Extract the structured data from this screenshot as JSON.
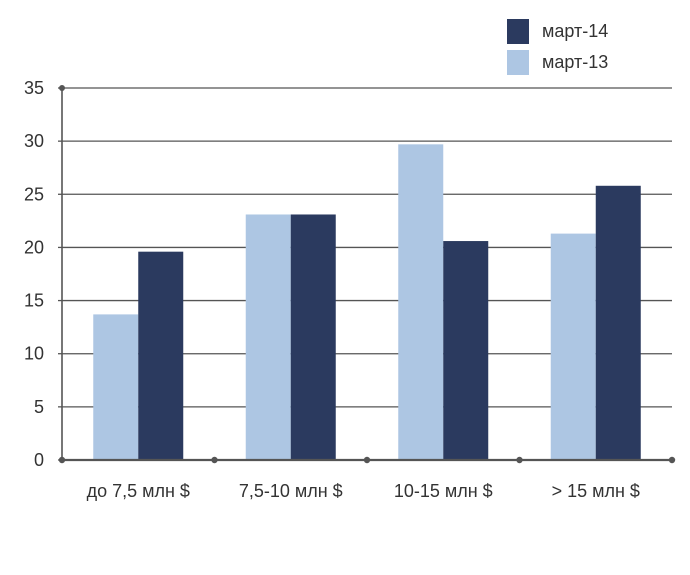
{
  "chart_data": {
    "type": "bar",
    "categories": [
      "до 7,5 млн $",
      "7,5-10 млн $",
      "10-15 млн $",
      "> 15 млн $"
    ],
    "series": [
      {
        "name": "март-13",
        "color": "#adc6e3",
        "values": [
          13.7,
          23.1,
          29.7,
          21.3
        ]
      },
      {
        "name": "март-14",
        "color": "#2b3a5f",
        "values": [
          19.6,
          23.1,
          20.6,
          25.8
        ]
      }
    ],
    "ylim": [
      0,
      35
    ],
    "yticks": [
      "0",
      "5",
      "10",
      "15",
      "20",
      "25",
      "30",
      "35"
    ],
    "grid": true,
    "legend_position": "top-right",
    "title": "",
    "xlabel": "",
    "ylabel": ""
  },
  "legend": [
    {
      "label": "март-14",
      "color": "#2b3a5f"
    },
    {
      "label": "март-13",
      "color": "#adc6e3"
    }
  ]
}
